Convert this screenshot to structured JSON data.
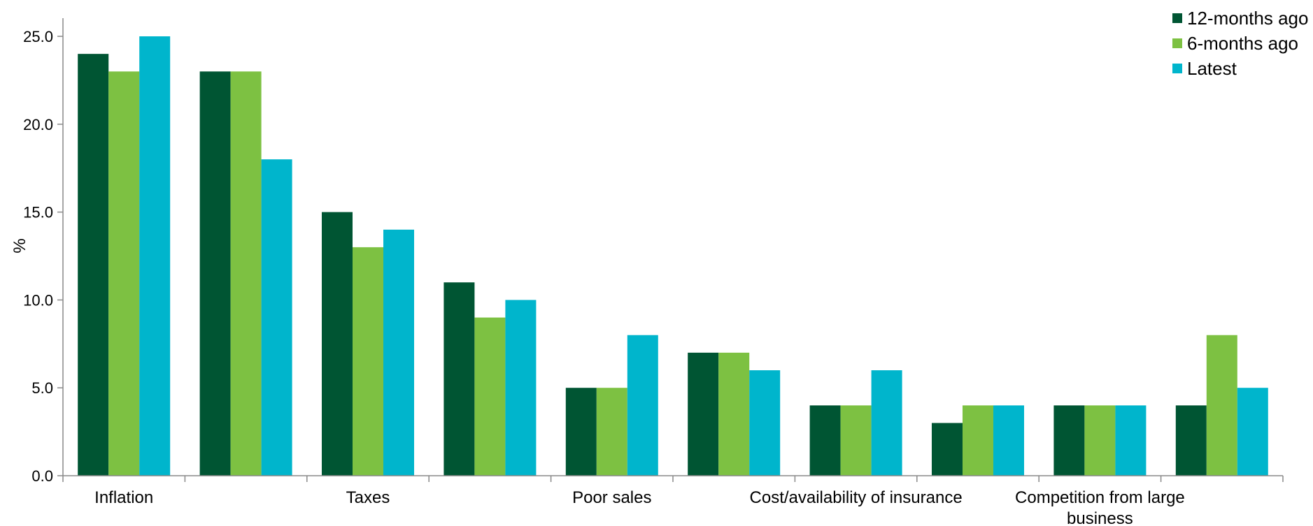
{
  "chart_data": {
    "type": "bar",
    "title": "",
    "xlabel": "",
    "ylabel": "%",
    "ylim": [
      0,
      25
    ],
    "yticks": [
      "0.0",
      "5.0",
      "10.0",
      "15.0",
      "20.0",
      "25.0"
    ],
    "grid": false,
    "legend_position": "top-right",
    "categories": [
      "Inflation",
      "",
      "Taxes",
      "",
      "Poor sales",
      "",
      "Cost/availability of insurance",
      "",
      "Competition from large business",
      ""
    ],
    "series": [
      {
        "name": "12-months ago",
        "color": "#005533",
        "values": [
          24,
          23,
          15,
          11,
          5,
          7,
          4,
          3,
          4,
          4
        ]
      },
      {
        "name": "6-months ago",
        "color": "#7DC142",
        "values": [
          23,
          23,
          13,
          9,
          5,
          7,
          4,
          4,
          4,
          8
        ]
      },
      {
        "name": "Latest",
        "color": "#00B5CC",
        "values": [
          25,
          18,
          14,
          10,
          8,
          6,
          6,
          4,
          4,
          5
        ]
      }
    ]
  }
}
